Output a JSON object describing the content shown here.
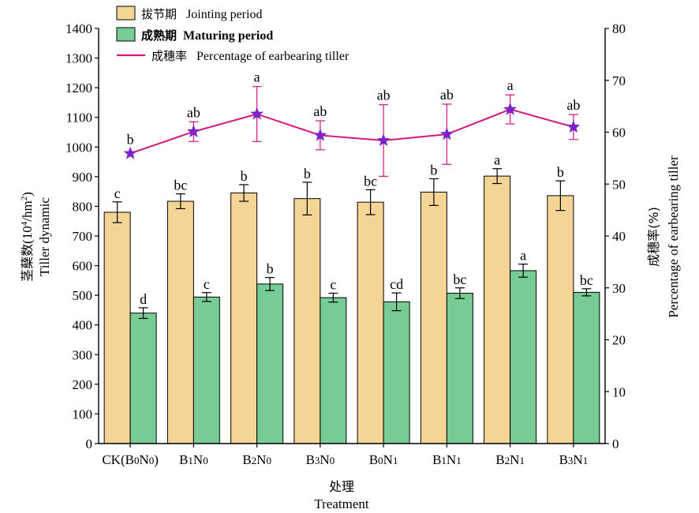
{
  "chart_data": {
    "type": "bar",
    "categories": [
      "CK(B0N0)",
      "B1N0",
      "B2N0",
      "B3N0",
      "B0N1",
      "B1N1",
      "B2N1",
      "B3N1"
    ],
    "category_parts": [
      {
        "pre": "CK(B",
        "s1": "0",
        "mid": "N",
        "s2": "0",
        "post": ")"
      },
      {
        "pre": "B",
        "s1": "1",
        "mid": "N",
        "s2": "0",
        "post": ""
      },
      {
        "pre": "B",
        "s1": "2",
        "mid": "N",
        "s2": "0",
        "post": ""
      },
      {
        "pre": "B",
        "s1": "3",
        "mid": "N",
        "s2": "0",
        "post": ""
      },
      {
        "pre": "B",
        "s1": "0",
        "mid": "N",
        "s2": "1",
        "post": ""
      },
      {
        "pre": "B",
        "s1": "1",
        "mid": "N",
        "s2": "1",
        "post": ""
      },
      {
        "pre": "B",
        "s1": "2",
        "mid": "N",
        "s2": "1",
        "post": ""
      },
      {
        "pre": "B",
        "s1": "3",
        "mid": "N",
        "s2": "1",
        "post": ""
      }
    ],
    "series": [
      {
        "name": "拔节期 Jointing period",
        "name_cn": "拔节期",
        "name_en": "Jointing period",
        "type": "bar",
        "axis": "left",
        "color": "#f5d596",
        "values": [
          780,
          817,
          845,
          826,
          814,
          848,
          902,
          836
        ],
        "errors": [
          35,
          25,
          28,
          55,
          42,
          45,
          25,
          50
        ],
        "labels": [
          "c",
          "bc",
          "b",
          "b",
          "bc",
          "b",
          "a",
          "b"
        ]
      },
      {
        "name": "成熟期 Maturing period",
        "name_cn": "成熟期",
        "name_en": "Maturing period",
        "type": "bar",
        "axis": "left",
        "color": "#76cc94",
        "values": [
          440,
          494,
          538,
          492,
          478,
          507,
          583,
          510
        ],
        "errors": [
          18,
          15,
          22,
          15,
          30,
          18,
          22,
          12
        ],
        "labels": [
          "d",
          "c",
          "b",
          "c",
          "cd",
          "bc",
          "a",
          "bc"
        ]
      },
      {
        "name": "成穗率 Percentage of earbearing tiller",
        "name_cn": "成穗率",
        "name_en": "Percentage of earbearing tiller",
        "type": "line",
        "axis": "right",
        "color": "#d4167f",
        "marker_color": "#7b22c8",
        "values": [
          55.9,
          60.1,
          63.5,
          59.4,
          58.4,
          59.6,
          64.4,
          61.0
        ],
        "errors": [
          0,
          1.9,
          5.3,
          2.8,
          6.9,
          5.8,
          2.8,
          2.4
        ],
        "labels": [
          "b",
          "ab",
          "a",
          "ab",
          "ab",
          "ab",
          "a",
          "ab"
        ]
      }
    ],
    "y_left": {
      "label_cn": "茎蘖数",
      "label_unit_pre": "(10",
      "label_unit_sup": "4",
      "label_unit_mid": "/hm",
      "label_unit_sup2": "2",
      "label_unit_post": ")",
      "label_en": "Tiller dynamic",
      "ylim": [
        0,
        1400
      ],
      "ticks": [
        "0",
        "100",
        "200",
        "300",
        "400",
        "500",
        "600",
        "700",
        "800",
        "900",
        "1000",
        "1100",
        "1200",
        "1300",
        "1400"
      ]
    },
    "y_right": {
      "label_cn": "成穗率(%)",
      "label_en": "Percentage of earbearing tiller",
      "ylim": [
        0,
        80
      ],
      "ticks": [
        "0",
        "10",
        "20",
        "30",
        "40",
        "50",
        "60",
        "70",
        "80"
      ]
    },
    "x_axis": {
      "label_cn": "处理",
      "label_en": "Treatment"
    },
    "legend": "top-left inside",
    "grid": false
  }
}
